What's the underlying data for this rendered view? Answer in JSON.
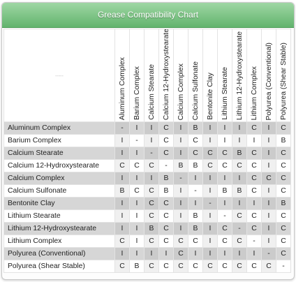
{
  "title": "Grease Compatibility Chart",
  "corner_label": "-----",
  "columns": [
    "Aluminum Complex",
    "Barium Complex",
    "Calcium Stearate",
    "Calcium 12-Hydroxystearate",
    "Calcium Complex",
    "Calcium Sulfonate",
    "Bentonite Clay",
    "Lithium Stearate",
    "Lithium 12-Hydroxystearate",
    "Lithium Complex",
    "Polyurea (Conventional)",
    "Polyurea (Shear Stable)"
  ],
  "rows": [
    {
      "label": "Aluminum Complex",
      "values": [
        "-",
        "I",
        "I",
        "C",
        "I",
        "B",
        "I",
        "I",
        "I",
        "C",
        "I",
        "C"
      ]
    },
    {
      "label": "Barium Complex",
      "values": [
        "I",
        "-",
        "I",
        "C",
        "I",
        "C",
        "I",
        "I",
        "I",
        "I",
        "I",
        "B"
      ]
    },
    {
      "label": "Calcium Stearate",
      "values": [
        "I",
        "I",
        "-",
        "C",
        "I",
        "C",
        "C",
        "C",
        "B",
        "C",
        "I",
        "C"
      ]
    },
    {
      "label": "Calcium 12-Hydroxystearate",
      "values": [
        "C",
        "C",
        "C",
        "-",
        "B",
        "B",
        "C",
        "C",
        "C",
        "C",
        "I",
        "C"
      ]
    },
    {
      "label": "Calcium Complex",
      "values": [
        "I",
        "I",
        "I",
        "B",
        "-",
        "I",
        "I",
        "I",
        "I",
        "C",
        "C",
        "C"
      ]
    },
    {
      "label": "Calcium Sulfonate",
      "values": [
        "B",
        "C",
        "C",
        "B",
        "I",
        "-",
        "I",
        "B",
        "B",
        "C",
        "I",
        "C"
      ]
    },
    {
      "label": "Bentonite Clay",
      "values": [
        "I",
        "I",
        "C",
        "C",
        "I",
        "I",
        "-",
        "I",
        "I",
        "I",
        "I",
        "B"
      ]
    },
    {
      "label": "Lithium Stearate",
      "values": [
        "I",
        "I",
        "C",
        "C",
        "I",
        "B",
        "I",
        "-",
        "C",
        "C",
        "I",
        "C"
      ]
    },
    {
      "label": "Lithium 12-Hydroxystearate",
      "values": [
        "I",
        "I",
        "B",
        "C",
        "I",
        "B",
        "I",
        "C",
        "-",
        "C",
        "I",
        "C"
      ]
    },
    {
      "label": "Lithium Complex",
      "values": [
        "C",
        "I",
        "C",
        "C",
        "C",
        "C",
        "I",
        "C",
        "C",
        "-",
        "I",
        "C"
      ]
    },
    {
      "label": "Polyurea (Conventional)",
      "values": [
        "I",
        "I",
        "I",
        "I",
        "C",
        "I",
        "I",
        "I",
        "I",
        "I",
        "-",
        "C"
      ]
    },
    {
      "label": "Polyurea (Shear Stable)",
      "values": [
        "C",
        "B",
        "C",
        "C",
        "C",
        "C",
        "C",
        "C",
        "C",
        "C",
        "C",
        "-"
      ]
    }
  ]
}
